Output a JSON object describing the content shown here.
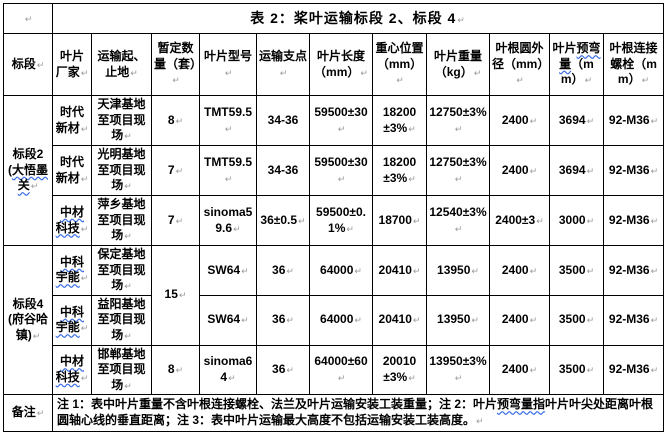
{
  "marks": {
    "pilcrow": "↵"
  },
  "title": "表 2：桨叶运输标段 2、标段 4",
  "header": [
    {
      "s": [
        [
          "标段",
          0
        ]
      ]
    },
    {
      "s": [
        [
          "叶片厂家",
          0
        ]
      ]
    },
    {
      "s": [
        [
          "运输起、止地",
          0
        ]
      ]
    },
    {
      "s": [
        [
          "暂定数量（套）",
          0
        ]
      ]
    },
    {
      "s": [
        [
          "叶片型号",
          0
        ]
      ]
    },
    {
      "s": [
        [
          "运输支点",
          0
        ]
      ]
    },
    {
      "s": [
        [
          "叶片长度（mm）",
          0
        ]
      ]
    },
    {
      "s": [
        [
          "重心位置（mm）",
          0
        ]
      ]
    },
    {
      "s": [
        [
          "叶片重量（kg）",
          0
        ]
      ]
    },
    {
      "s": [
        [
          "叶根圆外径（mm）",
          0
        ]
      ]
    },
    {
      "s": [
        [
          "叶片",
          0
        ],
        [
          "预弯量",
          1
        ],
        [
          "（mm）",
          0
        ]
      ]
    },
    {
      "s": [
        [
          "叶根连接螺栓（mm）",
          0
        ]
      ]
    }
  ],
  "rows": [
    [
      {
        "s": [
          [
            "标段2(",
            0
          ],
          [
            "大悟墨关",
            1
          ]
        ],
        "rs": 3,
        "name": "section-2-label"
      },
      {
        "s": [
          [
            "时代新材",
            0
          ]
        ]
      },
      {
        "s": [
          [
            "天津基地至项目现场",
            0
          ]
        ]
      },
      {
        "s": [
          [
            "8",
            0
          ]
        ]
      },
      {
        "s": [
          [
            "TMT59.5",
            0
          ]
        ]
      },
      {
        "s": [
          [
            "34-36",
            0
          ]
        ],
        "pm": 0
      },
      {
        "s": [
          [
            "59500±30",
            0
          ]
        ]
      },
      {
        "s": [
          [
            "18200±3%",
            0
          ]
        ]
      },
      {
        "s": [
          [
            "12750±3%",
            0
          ]
        ]
      },
      {
        "s": [
          [
            "2400",
            0
          ]
        ]
      },
      {
        "s": [
          [
            "3694",
            0
          ]
        ]
      },
      {
        "s": [
          [
            "92-M36",
            0
          ]
        ]
      }
    ],
    [
      {
        "s": [
          [
            "时代新材",
            0
          ]
        ]
      },
      {
        "s": [
          [
            "光明基地至项目现场",
            0
          ]
        ]
      },
      {
        "s": [
          [
            "7",
            0
          ]
        ]
      },
      {
        "s": [
          [
            "TMT59.5",
            0
          ]
        ]
      },
      {
        "s": [
          [
            "34-36",
            0
          ]
        ],
        "pm": 0
      },
      {
        "s": [
          [
            "59500±30",
            0
          ]
        ]
      },
      {
        "s": [
          [
            "18200±3%",
            0
          ]
        ]
      },
      {
        "s": [
          [
            "12750±3%",
            0
          ]
        ]
      },
      {
        "s": [
          [
            "2400",
            0
          ]
        ]
      },
      {
        "s": [
          [
            "3694",
            0
          ]
        ]
      },
      {
        "s": [
          [
            "92-M36",
            0
          ]
        ]
      }
    ],
    [
      {
        "s": [
          [
            "中材科技",
            1
          ]
        ]
      },
      {
        "s": [
          [
            "萍乡基地至项目现场",
            0
          ]
        ]
      },
      {
        "s": [
          [
            "7",
            0
          ]
        ]
      },
      {
        "s": [
          [
            "sinoma59.6",
            0
          ]
        ]
      },
      {
        "s": [
          [
            "36±0.5",
            0
          ]
        ]
      },
      {
        "s": [
          [
            "59500±0.1%",
            0
          ]
        ]
      },
      {
        "s": [
          [
            "18700",
            0
          ]
        ]
      },
      {
        "s": [
          [
            "12540±3%",
            0
          ]
        ]
      },
      {
        "s": [
          [
            "2400±3",
            0
          ]
        ]
      },
      {
        "s": [
          [
            "3000",
            0
          ]
        ]
      },
      {
        "s": [
          [
            "92-M36",
            0
          ]
        ]
      }
    ],
    [
      {
        "s": [
          [
            "标段4(府谷哈镇)",
            0
          ]
        ],
        "rs": 3,
        "name": "section-4-label"
      },
      {
        "s": [
          [
            "中科宇能",
            1
          ]
        ]
      },
      {
        "s": [
          [
            "保定基地至项目现场",
            0
          ]
        ]
      },
      {
        "s": [
          [
            "15",
            0
          ]
        ],
        "rs": 2
      },
      {
        "s": [
          [
            "SW64",
            0
          ]
        ]
      },
      {
        "s": [
          [
            "36",
            0
          ]
        ]
      },
      {
        "s": [
          [
            "64000",
            0
          ]
        ]
      },
      {
        "s": [
          [
            "20410",
            0
          ]
        ]
      },
      {
        "s": [
          [
            "13950",
            0
          ]
        ]
      },
      {
        "s": [
          [
            "2400",
            0
          ]
        ]
      },
      {
        "s": [
          [
            "3500",
            0
          ]
        ]
      },
      {
        "s": [
          [
            "92-M36",
            0
          ]
        ]
      }
    ],
    [
      {
        "s": [
          [
            "中科宇能",
            1
          ]
        ]
      },
      {
        "s": [
          [
            "益阳基地至项目现场",
            0
          ]
        ]
      },
      {
        "s": [
          [
            "SW64",
            0
          ]
        ]
      },
      {
        "s": [
          [
            "36",
            0
          ]
        ]
      },
      {
        "s": [
          [
            "64000",
            0
          ]
        ]
      },
      {
        "s": [
          [
            "20410",
            0
          ]
        ]
      },
      {
        "s": [
          [
            "13950",
            0
          ]
        ]
      },
      {
        "s": [
          [
            "2400",
            0
          ]
        ]
      },
      {
        "s": [
          [
            "3500",
            0
          ]
        ]
      },
      {
        "s": [
          [
            "92-M36",
            0
          ]
        ]
      }
    ],
    [
      {
        "s": [
          [
            "中材科技",
            1
          ]
        ]
      },
      {
        "s": [
          [
            "邯郸基地至项目现场",
            0
          ]
        ]
      },
      {
        "s": [
          [
            "8",
            0
          ]
        ]
      },
      {
        "s": [
          [
            "sinoma64",
            0
          ]
        ]
      },
      {
        "s": [
          [
            "36",
            0
          ]
        ]
      },
      {
        "s": [
          [
            "64000±60",
            0
          ]
        ]
      },
      {
        "s": [
          [
            "20010±3%",
            0
          ]
        ]
      },
      {
        "s": [
          [
            "13950±3%",
            0
          ]
        ]
      },
      {
        "s": [
          [
            "2400",
            0
          ]
        ]
      },
      {
        "s": [
          [
            "3500",
            0
          ]
        ]
      },
      {
        "s": [
          [
            "92-M36",
            0
          ]
        ]
      }
    ]
  ],
  "notes_label": {
    "s": [
      [
        "备注",
        0
      ]
    ],
    "name": "notes-label"
  },
  "notes": {
    "s": [
      [
        "注 1：表中叶片重量不含叶根连接螺栓、法兰及叶片运输安装工装重量；注 2：叶片",
        0
      ],
      [
        "预弯量指",
        1
      ],
      [
        "叶片叶尖处距离叶根圆轴心线的垂直距离；注 3：表中叶片运输最大高度不包括运输安装工装高度。",
        0
      ]
    ],
    "name": "notes-text",
    "cls": "notes-cell",
    "cs": 11
  }
}
